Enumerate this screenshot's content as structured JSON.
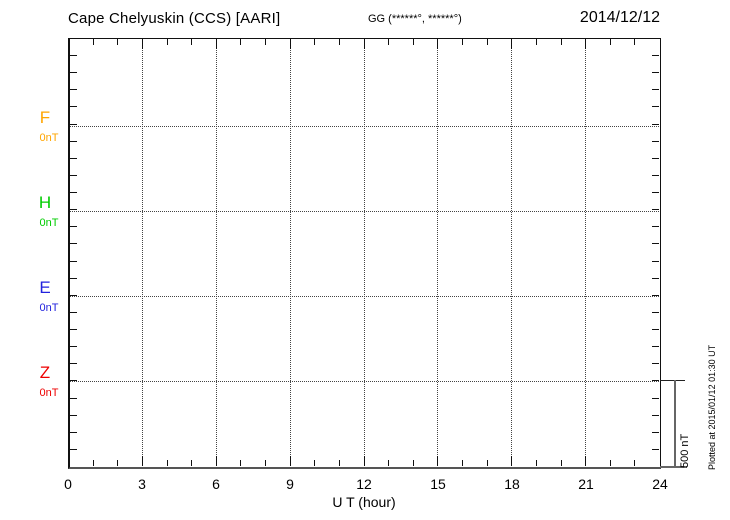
{
  "header": {
    "station_title": "Cape Chelyuskin (CCS)  [AARI]",
    "gg_coordinates": "GG (******°, ******°)",
    "date": "2014/12/12"
  },
  "channels": [
    {
      "label": "F",
      "baseline_value": "0nT",
      "color": "#FFA500"
    },
    {
      "label": "H",
      "baseline_value": "0nT",
      "color": "#00CC00"
    },
    {
      "label": "E",
      "baseline_value": "0nT",
      "color": "#2222DD"
    },
    {
      "label": "Z",
      "baseline_value": "0nT",
      "color": "#EE0000"
    }
  ],
  "x_axis": {
    "tick_labels": [
      "0",
      "3",
      "6",
      "9",
      "12",
      "15",
      "18",
      "21",
      "24"
    ],
    "title": "U T (hour)"
  },
  "scale_bar": {
    "label": "500 nT"
  },
  "side_note": {
    "plotted_at": "Plotted at 2015/01/12 01:30 UT"
  },
  "chart_data": {
    "type": "line",
    "title": "Cape Chelyuskin (CCS) [AARI]",
    "subtitle": "GG (******°, ******°)",
    "date": "2014/12/12",
    "xlabel": "U T (hour)",
    "xlim": [
      0,
      24
    ],
    "x_ticks": [
      0,
      3,
      6,
      9,
      12,
      15,
      18,
      21,
      24
    ],
    "x_minor_tick_interval_hours": 1,
    "y_scale_bar": "500 nT",
    "y_tick_interval_nT": 100,
    "grid": "dotted vertical lines every 3 hours; dotted horizontal baseline per channel",
    "legend_position": "left margin, one colored label per stacked channel",
    "series": [
      {
        "name": "F",
        "color": "#FFA500",
        "baseline_nT": 0,
        "values": []
      },
      {
        "name": "H",
        "color": "#00CC00",
        "baseline_nT": 0,
        "values": []
      },
      {
        "name": "E",
        "color": "#2222DD",
        "baseline_nT": 0,
        "values": []
      },
      {
        "name": "Z",
        "color": "#EE0000",
        "baseline_nT": 0,
        "values": []
      }
    ],
    "note": "Empty magnetogram: no data traces are drawn for 2014/12/12; all channel baselines labeled 0nT"
  }
}
